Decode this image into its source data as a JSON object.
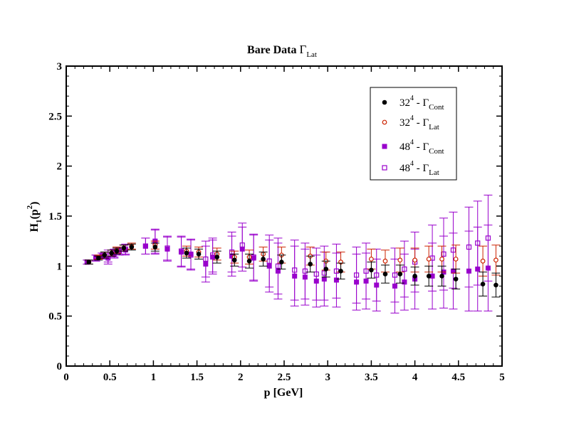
{
  "chart_data": {
    "type": "scatter",
    "title": {
      "main": "Bare Data ",
      "symbol": "Γ",
      "sub": "Lat"
    },
    "xlabel": "p [GeV]",
    "ylabel": {
      "main": "H",
      "sub": "1",
      "arg_open": "(p",
      "sup": "2",
      "arg_close": ")"
    },
    "xlim": [
      0,
      5
    ],
    "ylim": [
      0,
      3
    ],
    "x_ticks": [
      0,
      0.5,
      1,
      1.5,
      2,
      2.5,
      3,
      3.5,
      4,
      4.5,
      5
    ],
    "x_tick_labels": [
      "0",
      "0.5",
      "1",
      "1.5",
      "2",
      "2.5",
      "3",
      "3.5",
      "4",
      "4.5",
      "5"
    ],
    "y_ticks": [
      0,
      0.5,
      1,
      1.5,
      2,
      2.5,
      3
    ],
    "y_tick_labels": [
      "0",
      "0.5",
      "1",
      "1.5",
      "2",
      "2.5",
      "3"
    ],
    "grid": false,
    "legend_position": "top-right",
    "series": [
      {
        "legend": {
          "base": "32",
          "sup": "4",
          "dash": " - ",
          "symbol": "Γ",
          "sub": "Cont"
        },
        "marker": "filled-circle",
        "color": "#000000",
        "points": [
          {
            "x": 0.26,
            "y": 1.04,
            "err": 0.02
          },
          {
            "x": 0.37,
            "y": 1.08,
            "err": 0.02
          },
          {
            "x": 0.44,
            "y": 1.11,
            "err": 0.03
          },
          {
            "x": 0.52,
            "y": 1.13,
            "err": 0.03
          },
          {
            "x": 0.58,
            "y": 1.15,
            "err": 0.03
          },
          {
            "x": 0.66,
            "y": 1.18,
            "err": 0.03
          },
          {
            "x": 0.75,
            "y": 1.19,
            "err": 0.03
          },
          {
            "x": 1.02,
            "y": 1.19,
            "err": 0.04
          },
          {
            "x": 1.38,
            "y": 1.13,
            "err": 0.05
          },
          {
            "x": 1.52,
            "y": 1.12,
            "err": 0.05
          },
          {
            "x": 1.73,
            "y": 1.09,
            "err": 0.06
          },
          {
            "x": 1.93,
            "y": 1.06,
            "err": 0.06
          },
          {
            "x": 2.1,
            "y": 1.05,
            "err": 0.07
          },
          {
            "x": 2.26,
            "y": 1.07,
            "err": 0.07
          },
          {
            "x": 2.47,
            "y": 1.04,
            "err": 0.07
          },
          {
            "x": 2.8,
            "y": 1.02,
            "err": 0.08
          },
          {
            "x": 2.98,
            "y": 0.97,
            "err": 0.08
          },
          {
            "x": 3.15,
            "y": 0.95,
            "err": 0.08
          },
          {
            "x": 3.5,
            "y": 0.96,
            "err": 0.08
          },
          {
            "x": 3.66,
            "y": 0.92,
            "err": 0.09
          },
          {
            "x": 3.83,
            "y": 0.92,
            "err": 0.09
          },
          {
            "x": 4.0,
            "y": 0.9,
            "err": 0.09
          },
          {
            "x": 4.16,
            "y": 0.9,
            "err": 0.1
          },
          {
            "x": 4.31,
            "y": 0.9,
            "err": 0.1
          },
          {
            "x": 4.47,
            "y": 0.87,
            "err": 0.1
          },
          {
            "x": 4.78,
            "y": 0.82,
            "err": 0.12
          },
          {
            "x": 4.93,
            "y": 0.81,
            "err": 0.12
          }
        ]
      },
      {
        "legend": {
          "base": "32",
          "sup": "4",
          "dash": " - ",
          "symbol": "Γ",
          "sub": "Lat"
        },
        "marker": "open-circle",
        "color": "#cc2200",
        "points": [
          {
            "x": 0.26,
            "y": 1.04,
            "err": 0.02
          },
          {
            "x": 0.37,
            "y": 1.09,
            "err": 0.02
          },
          {
            "x": 0.44,
            "y": 1.11,
            "err": 0.03
          },
          {
            "x": 0.52,
            "y": 1.13,
            "err": 0.03
          },
          {
            "x": 0.58,
            "y": 1.16,
            "err": 0.03
          },
          {
            "x": 0.66,
            "y": 1.18,
            "err": 0.03
          },
          {
            "x": 0.75,
            "y": 1.2,
            "err": 0.03
          },
          {
            "x": 1.02,
            "y": 1.21,
            "err": 0.04
          },
          {
            "x": 1.38,
            "y": 1.15,
            "err": 0.05
          },
          {
            "x": 1.52,
            "y": 1.14,
            "err": 0.05
          },
          {
            "x": 1.73,
            "y": 1.12,
            "err": 0.06
          },
          {
            "x": 1.93,
            "y": 1.09,
            "err": 0.06
          },
          {
            "x": 2.1,
            "y": 1.09,
            "err": 0.07
          },
          {
            "x": 2.26,
            "y": 1.12,
            "err": 0.07
          },
          {
            "x": 2.47,
            "y": 1.11,
            "err": 0.08
          },
          {
            "x": 2.8,
            "y": 1.1,
            "err": 0.09
          },
          {
            "x": 2.98,
            "y": 1.05,
            "err": 0.09
          },
          {
            "x": 3.15,
            "y": 1.04,
            "err": 0.1
          },
          {
            "x": 3.5,
            "y": 1.07,
            "err": 0.1
          },
          {
            "x": 3.66,
            "y": 1.05,
            "err": 0.11
          },
          {
            "x": 3.83,
            "y": 1.06,
            "err": 0.12
          },
          {
            "x": 4.0,
            "y": 1.06,
            "err": 0.12
          },
          {
            "x": 4.16,
            "y": 1.07,
            "err": 0.13
          },
          {
            "x": 4.31,
            "y": 1.07,
            "err": 0.13
          },
          {
            "x": 4.47,
            "y": 1.07,
            "err": 0.14
          },
          {
            "x": 4.78,
            "y": 1.05,
            "err": 0.15
          },
          {
            "x": 4.93,
            "y": 1.06,
            "err": 0.15
          }
        ]
      },
      {
        "legend": {
          "base": "48",
          "sup": "4",
          "dash": " - ",
          "symbol": "Γ",
          "sub": "Cont"
        },
        "marker": "filled-square",
        "color": "#9900cc",
        "points": [
          {
            "x": 0.24,
            "y": 1.04,
            "err": 0.02
          },
          {
            "x": 0.34,
            "y": 1.08,
            "err": 0.03
          },
          {
            "x": 0.41,
            "y": 1.1,
            "err": 0.03
          },
          {
            "x": 0.48,
            "y": 1.08,
            "err": 0.06
          },
          {
            "x": 0.55,
            "y": 1.12,
            "err": 0.04
          },
          {
            "x": 0.61,
            "y": 1.15,
            "err": 0.04
          },
          {
            "x": 0.68,
            "y": 1.16,
            "err": 0.05
          },
          {
            "x": 0.91,
            "y": 1.2,
            "err": 0.08
          },
          {
            "x": 1.02,
            "y": 1.25,
            "err": 0.12
          },
          {
            "x": 1.16,
            "y": 1.17,
            "err": 0.12
          },
          {
            "x": 1.32,
            "y": 1.14,
            "err": 0.15
          },
          {
            "x": 1.43,
            "y": 1.12,
            "err": 0.15
          },
          {
            "x": 1.6,
            "y": 1.02,
            "err": 0.18
          },
          {
            "x": 1.68,
            "y": 1.09,
            "err": 0.17
          },
          {
            "x": 1.9,
            "y": 1.1,
            "err": 0.2
          },
          {
            "x": 2.02,
            "y": 1.17,
            "err": 0.22
          },
          {
            "x": 2.15,
            "y": 1.08,
            "err": 0.23
          },
          {
            "x": 2.33,
            "y": 1.0,
            "err": 0.26
          },
          {
            "x": 2.43,
            "y": 0.95,
            "err": 0.28
          },
          {
            "x": 2.62,
            "y": 0.9,
            "err": 0.3
          },
          {
            "x": 2.74,
            "y": 0.89,
            "err": 0.28
          },
          {
            "x": 2.87,
            "y": 0.85,
            "err": 0.26
          },
          {
            "x": 2.96,
            "y": 0.87,
            "err": 0.27
          },
          {
            "x": 3.1,
            "y": 0.86,
            "err": 0.27
          },
          {
            "x": 3.33,
            "y": 0.84,
            "err": 0.28
          },
          {
            "x": 3.44,
            "y": 0.85,
            "err": 0.28
          },
          {
            "x": 3.56,
            "y": 0.81,
            "err": 0.26
          },
          {
            "x": 3.77,
            "y": 0.8,
            "err": 0.27
          },
          {
            "x": 3.88,
            "y": 0.84,
            "err": 0.28
          },
          {
            "x": 4.0,
            "y": 0.87,
            "err": 0.3
          },
          {
            "x": 4.2,
            "y": 0.9,
            "err": 0.33
          },
          {
            "x": 4.33,
            "y": 0.94,
            "err": 0.36
          },
          {
            "x": 4.44,
            "y": 0.95,
            "err": 0.38
          },
          {
            "x": 4.62,
            "y": 0.95,
            "err": 0.4
          },
          {
            "x": 4.72,
            "y": 0.97,
            "err": 0.42
          },
          {
            "x": 4.84,
            "y": 0.98,
            "err": 0.43
          }
        ]
      },
      {
        "legend": {
          "base": "48",
          "sup": "4",
          "dash": " - ",
          "symbol": "Γ",
          "sub": "Lat"
        },
        "marker": "open-square",
        "color": "#9900cc",
        "points": [
          {
            "x": 0.24,
            "y": 1.04,
            "err": 0.02
          },
          {
            "x": 0.34,
            "y": 1.08,
            "err": 0.03
          },
          {
            "x": 0.41,
            "y": 1.1,
            "err": 0.03
          },
          {
            "x": 0.48,
            "y": 1.1,
            "err": 0.06
          },
          {
            "x": 0.55,
            "y": 1.13,
            "err": 0.04
          },
          {
            "x": 0.61,
            "y": 1.15,
            "err": 0.04
          },
          {
            "x": 0.68,
            "y": 1.17,
            "err": 0.05
          },
          {
            "x": 0.91,
            "y": 1.2,
            "err": 0.08
          },
          {
            "x": 1.02,
            "y": 1.24,
            "err": 0.12
          },
          {
            "x": 1.16,
            "y": 1.18,
            "err": 0.12
          },
          {
            "x": 1.32,
            "y": 1.15,
            "err": 0.15
          },
          {
            "x": 1.43,
            "y": 1.11,
            "err": 0.15
          },
          {
            "x": 1.6,
            "y": 1.07,
            "err": 0.18
          },
          {
            "x": 1.68,
            "y": 1.11,
            "err": 0.17
          },
          {
            "x": 1.9,
            "y": 1.14,
            "err": 0.2
          },
          {
            "x": 2.02,
            "y": 1.21,
            "err": 0.22
          },
          {
            "x": 2.15,
            "y": 1.09,
            "err": 0.23
          },
          {
            "x": 2.33,
            "y": 1.05,
            "err": 0.26
          },
          {
            "x": 2.43,
            "y": 1.0,
            "err": 0.28
          },
          {
            "x": 2.62,
            "y": 0.96,
            "err": 0.3
          },
          {
            "x": 2.74,
            "y": 0.95,
            "err": 0.28
          },
          {
            "x": 2.87,
            "y": 0.92,
            "err": 0.26
          },
          {
            "x": 2.96,
            "y": 0.93,
            "err": 0.27
          },
          {
            "x": 3.1,
            "y": 0.95,
            "err": 0.27
          },
          {
            "x": 3.33,
            "y": 0.91,
            "err": 0.28
          },
          {
            "x": 3.44,
            "y": 0.95,
            "err": 0.28
          },
          {
            "x": 3.56,
            "y": 0.91,
            "err": 0.26
          },
          {
            "x": 3.77,
            "y": 0.91,
            "err": 0.27
          },
          {
            "x": 3.88,
            "y": 0.97,
            "err": 0.28
          },
          {
            "x": 4.0,
            "y": 1.04,
            "err": 0.3
          },
          {
            "x": 4.2,
            "y": 1.08,
            "err": 0.33
          },
          {
            "x": 4.33,
            "y": 1.12,
            "err": 0.36
          },
          {
            "x": 4.44,
            "y": 1.16,
            "err": 0.38
          },
          {
            "x": 4.62,
            "y": 1.19,
            "err": 0.4
          },
          {
            "x": 4.72,
            "y": 1.23,
            "err": 0.42
          },
          {
            "x": 4.84,
            "y": 1.28,
            "err": 0.43
          }
        ]
      }
    ]
  }
}
